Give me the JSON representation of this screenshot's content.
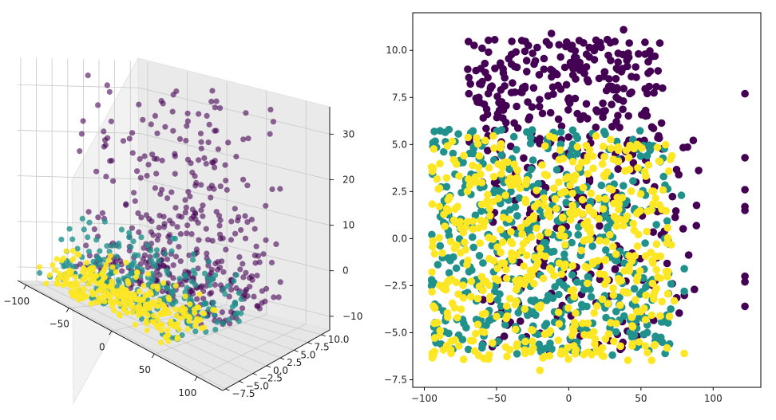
{
  "chart_data": [
    {
      "type": "scatter",
      "projection": "3d",
      "x_ticks": [
        -100,
        -50,
        0,
        50,
        100
      ],
      "y_ticks": [
        -7.5,
        -5.0,
        -2.5,
        0.0,
        2.5,
        5.0,
        7.5,
        10.0
      ],
      "z_ticks": [
        -10,
        0,
        10,
        20,
        30
      ],
      "x_tick_labels": [
        "−100",
        "−50",
        "0",
        "50",
        "100"
      ],
      "y_tick_labels": [
        "−7.5",
        "−5.0",
        "−2.5",
        "0.0",
        "2.5",
        "5.0",
        "7.5",
        "10.0"
      ],
      "z_tick_labels": [
        "−10",
        "0",
        "10",
        "20",
        "30"
      ],
      "xlim": [
        -110,
        130
      ],
      "ylim": [
        -8,
        11.5
      ],
      "zlim": [
        -13,
        36
      ],
      "grid": true,
      "series": [
        {
          "color": "#440154",
          "alpha": 0.6,
          "clusters": [
            {
              "x_range": [
                -90,
                85
              ],
              "y_range": [
                -2,
                11
              ],
              "z_range": [
                -8,
                35
              ],
              "count": 420
            }
          ]
        },
        {
          "color": "#21918c",
          "alpha": 0.8,
          "clusters": [
            {
              "x_range": [
                -95,
                70
              ],
              "y_range": [
                -7,
                6
              ],
              "z_range": [
                -10,
                3
              ],
              "count": 260
            }
          ]
        },
        {
          "color": "#fde725",
          "alpha": 0.9,
          "clusters": [
            {
              "x_range": [
                -95,
                60
              ],
              "y_range": [
                -7.5,
                2
              ],
              "z_range": [
                -11,
                -4
              ],
              "count": 300
            }
          ]
        }
      ]
    },
    {
      "type": "scatter",
      "x_ticks": [
        -100,
        -50,
        0,
        50,
        100
      ],
      "y_ticks": [
        -7.5,
        -5.0,
        -2.5,
        0.0,
        2.5,
        5.0,
        7.5,
        10.0
      ],
      "x_tick_labels": [
        "−100",
        "−50",
        "0",
        "50",
        "100"
      ],
      "y_tick_labels": [
        "−7.5",
        "−5.0",
        "−2.5",
        "0.0",
        "2.5",
        "5.0",
        "7.5",
        "10.0"
      ],
      "xlim": [
        -108,
        133
      ],
      "ylim": [
        -7.9,
        12
      ],
      "grid": false,
      "series": [
        {
          "color": "#440154",
          "clusters": [
            {
              "x_range": [
                -70,
                65
              ],
              "y_range": [
                5,
                10.6
              ],
              "count": 260
            },
            {
              "x_range": [
                -60,
                60
              ],
              "y_range": [
                -6,
                5
              ],
              "count": 180
            },
            {
              "x_range": [
                55,
                90
              ],
              "y_range": [
                -4,
                6
              ],
              "count": 25
            }
          ],
          "points": [
            [
              122,
              7.7
            ],
            [
              122,
              4.3
            ],
            [
              122,
              2.6
            ],
            [
              122,
              1.7
            ],
            [
              122,
              1.5
            ],
            [
              122,
              -2.0
            ],
            [
              122,
              -2.3
            ],
            [
              122,
              -3.6
            ],
            [
              87,
              -2.7
            ],
            [
              38,
              11.1
            ],
            [
              -12,
              10.9
            ]
          ]
        },
        {
          "color": "#21918c",
          "clusters": [
            {
              "x_range": [
                -95,
                72
              ],
              "y_range": [
                -6.2,
                5.8
              ],
              "count": 520
            }
          ],
          "points": [
            [
              78,
              2.3
            ],
            [
              80,
              -1.6
            ],
            [
              80,
              -2.8
            ],
            [
              -95,
              -2.5
            ],
            [
              -94,
              5.1
            ]
          ]
        },
        {
          "color": "#fde725",
          "clusters": [
            {
              "x_range": [
                -95,
                72
              ],
              "y_range": [
                -6.5,
                5.5
              ],
              "count": 540
            }
          ],
          "points": [
            [
              -95,
              3.8
            ],
            [
              -93,
              -4.5
            ],
            [
              73,
              -3.3
            ],
            [
              80,
              -6.1
            ],
            [
              -20,
              -7.0
            ]
          ]
        }
      ]
    }
  ]
}
